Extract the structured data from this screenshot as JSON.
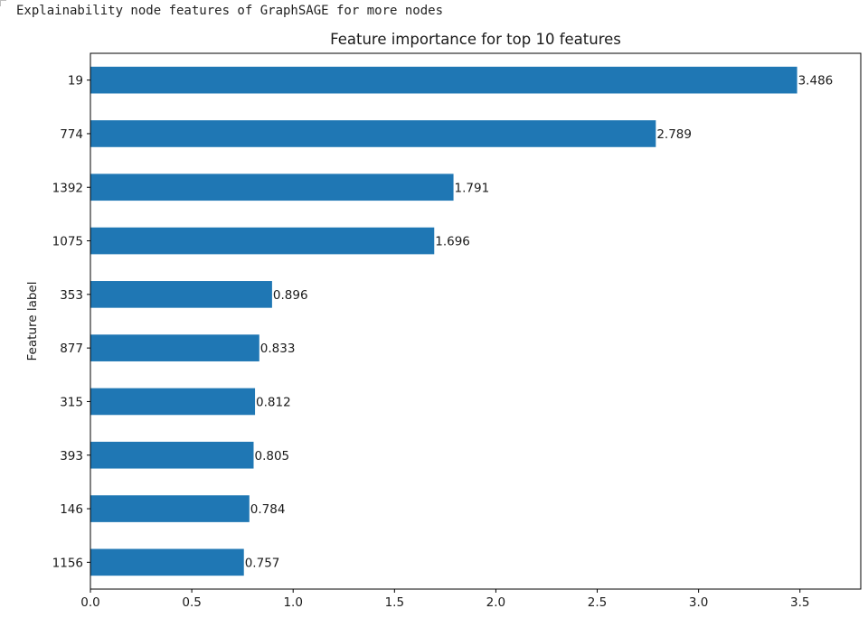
{
  "output": {
    "text": "Explainability node features of GraphSAGE for more nodes"
  },
  "colors": {
    "bar": "#1f77b4",
    "axis": "#000000",
    "text": "#1a1a1a"
  },
  "chart_data": {
    "type": "bar",
    "orientation": "horizontal",
    "title": "Feature importance for top 10 features",
    "xlabel": "",
    "ylabel": "Feature label",
    "categories": [
      "19",
      "774",
      "1392",
      "1075",
      "353",
      "877",
      "315",
      "393",
      "146",
      "1156"
    ],
    "values": [
      3.486,
      2.789,
      1.791,
      1.696,
      0.896,
      0.833,
      0.812,
      0.805,
      0.784,
      0.757
    ],
    "data_labels": [
      "3.486",
      "2.789",
      "1.791",
      "1.696",
      "0.896",
      "0.833",
      "0.812",
      "0.805",
      "0.784",
      "0.757"
    ],
    "xlim": [
      0,
      3.8
    ],
    "xticks": [
      0,
      0.5,
      1,
      1.5,
      2,
      2.5,
      3,
      3.5
    ],
    "xtick_labels": [
      "0.0",
      "0.5",
      "1.0",
      "1.5",
      "2.0",
      "2.5",
      "3.0",
      "3.5"
    ],
    "grid": false,
    "legend": "none"
  }
}
